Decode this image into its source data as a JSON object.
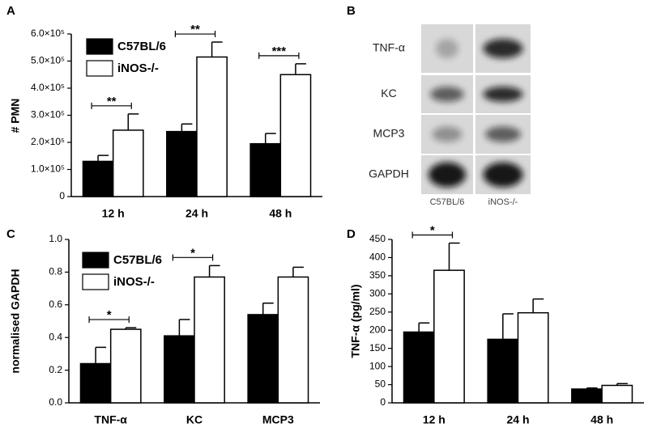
{
  "chart_data": [
    {
      "type": "bar",
      "panel": "A",
      "y_label": "# PMN",
      "categories": [
        "12 h",
        "24 h",
        "48 h"
      ],
      "series": [
        {
          "name": "C57BL/6",
          "color": "#000000",
          "values": [
            130000,
            240000,
            195000
          ],
          "errors": [
            22000,
            28000,
            38000
          ]
        },
        {
          "name": "iNOS-/-",
          "color": "#ffffff",
          "values": [
            245000,
            515000,
            450000
          ],
          "errors": [
            60000,
            55000,
            40000
          ]
        }
      ],
      "significance": [
        "**",
        "**",
        "***"
      ],
      "ylim": [
        0,
        600000
      ],
      "yticks": [
        0,
        {
          "value": 100000,
          "label": "1.0×10⁵"
        },
        {
          "value": 200000,
          "label": "2.0×10⁵"
        },
        {
          "value": 300000,
          "label": "3.0×10⁵"
        },
        {
          "value": 400000,
          "label": "4.0×10⁵"
        },
        {
          "value": 500000,
          "label": "5.0×10⁵"
        },
        {
          "value": 600000,
          "label": "6.0×10⁵"
        }
      ],
      "legend": "top-left"
    },
    {
      "type": "bar",
      "panel": "C",
      "y_label": "normalised GAPDH",
      "categories": [
        "TNF-α",
        "KC",
        "MCP3"
      ],
      "series": [
        {
          "name": "C57BL/6",
          "color": "#000000",
          "values": [
            0.24,
            0.41,
            0.54
          ],
          "errors": [
            0.1,
            0.1,
            0.07
          ]
        },
        {
          "name": "iNOS-/-",
          "color": "#ffffff",
          "values": [
            0.45,
            0.77,
            0.77
          ],
          "errors": [
            0.01,
            0.07,
            0.06
          ]
        }
      ],
      "significance": [
        "*",
        "*",
        null
      ],
      "ylim": [
        0,
        1.0
      ],
      "yticks": [
        {
          "value": 0,
          "label": "0.0"
        },
        0.2,
        0.4,
        0.6,
        0.8,
        {
          "value": 1,
          "label": "1.0"
        }
      ],
      "legend": "top-left"
    },
    {
      "type": "bar",
      "panel": "D",
      "y_label": "TNF-α (pg/ml)",
      "categories": [
        "12 h",
        "24 h",
        "48 h"
      ],
      "series": [
        {
          "name": "C57BL/6",
          "color": "#000000",
          "values": [
            195,
            175,
            38
          ],
          "errors": [
            25,
            70,
            3
          ]
        },
        {
          "name": "iNOS-/-",
          "color": "#ffffff",
          "values": [
            365,
            248,
            48
          ],
          "errors": [
            75,
            38,
            5
          ]
        }
      ],
      "significance": [
        "*",
        null,
        null
      ],
      "ylim": [
        0,
        450
      ],
      "yticks": [
        0,
        50,
        100,
        150,
        200,
        250,
        300,
        350,
        400,
        450
      ]
    }
  ],
  "blot": {
    "panel": "B",
    "rows": [
      "TNF-α",
      "KC",
      "MCP3",
      "GAPDH"
    ],
    "lanes": [
      "C57BL/6",
      "iNOS-/-"
    ]
  }
}
